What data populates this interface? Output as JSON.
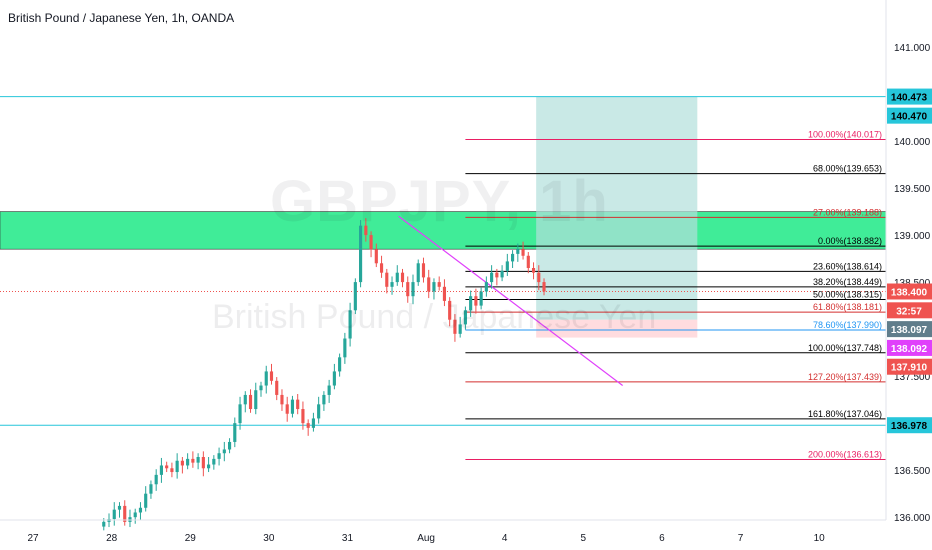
{
  "header": {
    "title": "British Pound / Japanese Yen, 1h, OANDA"
  },
  "watermark": {
    "symbol": "GBPJPY, 1h",
    "name": "British Pound / Japanese Yen"
  },
  "colors": {
    "axis_text": "#131722",
    "grid": "#e0e3eb",
    "up": "#26a69a",
    "down": "#ef5350",
    "support": "#26c6da",
    "zone": "#00e676",
    "target": "#b2dfdb",
    "stop": "#ffcdd2",
    "fib_black": "#000000",
    "fib_red": "#d32f2f",
    "fib_pink": "#e91e63",
    "fib_blue": "#2196f3",
    "trendline": "#e040fb",
    "price_line": "#ef5350"
  },
  "chart_data": {
    "type": "candlestick",
    "title": "British Pound / Japanese Yen, 1h, OANDA",
    "x_ticks": [
      {
        "label": "27",
        "x": 0.0
      },
      {
        "label": "28",
        "x": 1.0
      },
      {
        "label": "29",
        "x": 2.0
      },
      {
        "label": "30",
        "x": 3.0
      },
      {
        "label": "31",
        "x": 4.0
      },
      {
        "label": "Aug",
        "x": 5.0
      },
      {
        "label": "4",
        "x": 6.0
      },
      {
        "label": "5",
        "x": 7.0
      },
      {
        "label": "6",
        "x": 8.0
      },
      {
        "label": "7",
        "x": 9.0
      },
      {
        "label": "10",
        "x": 10.0
      }
    ],
    "ylim": [
      135.97,
      141.5
    ],
    "xlim": [
      -0.42,
      10.85
    ],
    "y_ticks": [
      136.0,
      136.5,
      137.0,
      137.5,
      138.0,
      138.5,
      139.0,
      139.5,
      140.0,
      140.5,
      141.0
    ],
    "y_tick_labels": [
      "136.000",
      "136.500",
      "137.000",
      "137.500",
      "138.000",
      "138.500",
      "139.000",
      "139.500",
      "140.000",
      "140.500",
      "141.000"
    ],
    "candles_close": [
      135.95,
      135.98,
      136.08,
      136.12,
      135.95,
      136.0,
      136.05,
      136.1,
      136.25,
      136.35,
      136.45,
      136.55,
      136.52,
      136.48,
      136.6,
      136.55,
      136.62,
      136.58,
      136.64,
      136.52,
      136.56,
      136.62,
      136.68,
      136.72,
      136.8,
      137.0,
      137.2,
      137.3,
      137.15,
      137.35,
      137.4,
      137.55,
      137.45,
      137.3,
      137.2,
      137.1,
      137.25,
      137.15,
      137.0,
      136.95,
      137.05,
      137.2,
      137.3,
      137.4,
      137.55,
      137.7,
      137.9,
      138.2,
      138.5,
      139.1,
      139.0,
      138.85,
      138.7,
      138.6,
      138.45,
      138.5,
      138.6,
      138.5,
      138.35,
      138.5,
      138.7,
      138.55,
      138.4,
      138.5,
      138.45,
      138.3,
      138.1,
      137.95,
      138.05,
      138.2,
      138.35,
      138.25,
      138.4,
      138.5,
      138.6,
      138.55,
      138.62,
      138.72,
      138.8,
      138.85,
      138.78,
      138.65,
      138.6,
      138.5,
      138.4
    ],
    "candles_x_start": 0.9,
    "candles_x_end": 6.5,
    "price_levels": [
      {
        "price": 140.473,
        "label": "140.473",
        "color": "support",
        "style": "solid",
        "tag": "dark"
      },
      {
        "price": 136.978,
        "label": "136.978",
        "color": "support",
        "style": "solid",
        "tag": "support"
      }
    ],
    "zones": [
      {
        "name": "resistance-zone",
        "y0": 138.85,
        "y1": 139.25,
        "x0": -0.42,
        "x1": 10.85,
        "color": "zone"
      },
      {
        "name": "target-zone",
        "y0": 138.1,
        "y1": 140.47,
        "x0": 6.4,
        "x1": 8.45,
        "color": "target"
      },
      {
        "name": "stop-zone",
        "y0": 137.91,
        "y1": 138.1,
        "x0": 6.4,
        "x1": 8.45,
        "color": "stop"
      }
    ],
    "fibs": [
      {
        "label": "100.00%(140.017)",
        "price": 140.017,
        "color": "fib_pink"
      },
      {
        "label": "68.00%(139.653)",
        "price": 139.653,
        "color": "fib_black"
      },
      {
        "label": "27.00%(139.188)",
        "price": 139.188,
        "color": "fib_red"
      },
      {
        "label": "0.00%(138.882)",
        "price": 138.882,
        "color": "fib_black"
      },
      {
        "label": "23.60%(138.614)",
        "price": 138.614,
        "color": "fib_black"
      },
      {
        "label": "38.20%(138.449)",
        "price": 138.449,
        "color": "fib_black"
      },
      {
        "label": "50.00%(138.315)",
        "price": 138.315,
        "color": "fib_black"
      },
      {
        "label": "61.80%(138.181)",
        "price": 138.181,
        "color": "fib_red"
      },
      {
        "label": "78.60%(137.990)",
        "price": 137.99,
        "color": "fib_blue"
      },
      {
        "label": "100.00%(137.748)",
        "price": 137.748,
        "color": "fib_black"
      },
      {
        "label": "127.20%(137.439)",
        "price": 137.439,
        "color": "fib_red"
      },
      {
        "label": "161.80%(137.046)",
        "price": 137.046,
        "color": "fib_black"
      },
      {
        "label": "200.00%(136.613)",
        "price": 136.613,
        "color": "fib_pink"
      }
    ],
    "fib_x_start": 5.5,
    "trendline": {
      "x0": 4.65,
      "y0": 139.2,
      "x1": 7.5,
      "y1": 137.4
    },
    "current_price": 138.4,
    "right_tags": [
      {
        "value": "140.473",
        "price": 140.473,
        "bg": "#26c6da",
        "fg": "#000000"
      },
      {
        "value": "140.470",
        "price": 140.27,
        "bg": "#26c6da",
        "fg": "#000000"
      },
      {
        "value": "138.400",
        "price": 138.4,
        "bg": "#ef5350",
        "fg": "#ffffff"
      },
      {
        "value": "32:57",
        "price": 138.2,
        "bg": "#ef5350",
        "fg": "#ffffff"
      },
      {
        "value": "138.097",
        "price": 138.0,
        "bg": "#607d8b",
        "fg": "#ffffff"
      },
      {
        "value": "138.092",
        "price": 137.8,
        "bg": "#e040fb",
        "fg": "#ffffff"
      },
      {
        "value": "137.910",
        "price": 137.6,
        "bg": "#ef5350",
        "fg": "#ffffff"
      },
      {
        "value": "136.978",
        "price": 136.978,
        "bg": "#26c6da",
        "fg": "#000000"
      }
    ]
  }
}
